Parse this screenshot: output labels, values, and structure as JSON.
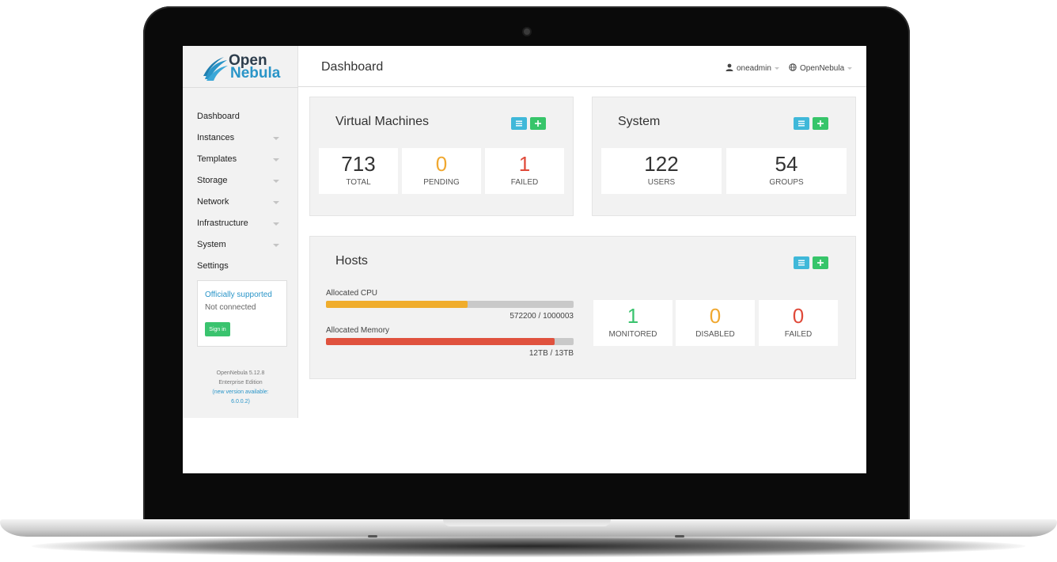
{
  "brand": {
    "logo_open": "Open",
    "logo_nebula": "Nebula",
    "primary_color": "#2a95c8"
  },
  "header": {
    "title": "Dashboard",
    "user": "oneadmin",
    "zone": "OpenNebula"
  },
  "sidebar": {
    "items": [
      {
        "label": "Dashboard",
        "has_submenu": false
      },
      {
        "label": "Instances",
        "has_submenu": true
      },
      {
        "label": "Templates",
        "has_submenu": true
      },
      {
        "label": "Storage",
        "has_submenu": true
      },
      {
        "label": "Network",
        "has_submenu": true
      },
      {
        "label": "Infrastructure",
        "has_submenu": true
      },
      {
        "label": "System",
        "has_submenu": true
      },
      {
        "label": "Settings",
        "has_submenu": false
      }
    ],
    "support": {
      "title": "Officially supported",
      "status": "Not connected",
      "sign_in_label": "Sign in"
    },
    "version": {
      "line1": "OpenNebula 5.12.8",
      "line2": "Enterprise Edition",
      "update_line1": "(new version available:",
      "update_line2": "6.0.0.2)"
    }
  },
  "vms": {
    "title": "Virtual Machines",
    "stats": [
      {
        "value": "713",
        "label": "TOTAL",
        "color": "#333333"
      },
      {
        "value": "0",
        "label": "PENDING",
        "color": "#f0a830"
      },
      {
        "value": "1",
        "label": "FAILED",
        "color": "#e04a3a"
      }
    ]
  },
  "system": {
    "title": "System",
    "stats": [
      {
        "value": "122",
        "label": "USERS",
        "color": "#333333"
      },
      {
        "value": "54",
        "label": "GROUPS",
        "color": "#333333"
      }
    ]
  },
  "hosts": {
    "title": "Hosts",
    "cpu": {
      "label": "Allocated CPU",
      "value_text": "572200 / 1000003",
      "fraction": 0.572,
      "color": "#f0ad2c"
    },
    "memory": {
      "label": "Allocated Memory",
      "value_text": "12TB / 13TB",
      "fraction": 0.923,
      "color": "#e0523e"
    },
    "stats": [
      {
        "value": "1",
        "label": "MONITORED",
        "color": "#3ac36e"
      },
      {
        "value": "0",
        "label": "DISABLED",
        "color": "#f0a830"
      },
      {
        "value": "0",
        "label": "FAILED",
        "color": "#e04a3a"
      }
    ]
  },
  "buttons": {
    "list_color": "#3fb8d9",
    "add_color": "#37c56a"
  }
}
